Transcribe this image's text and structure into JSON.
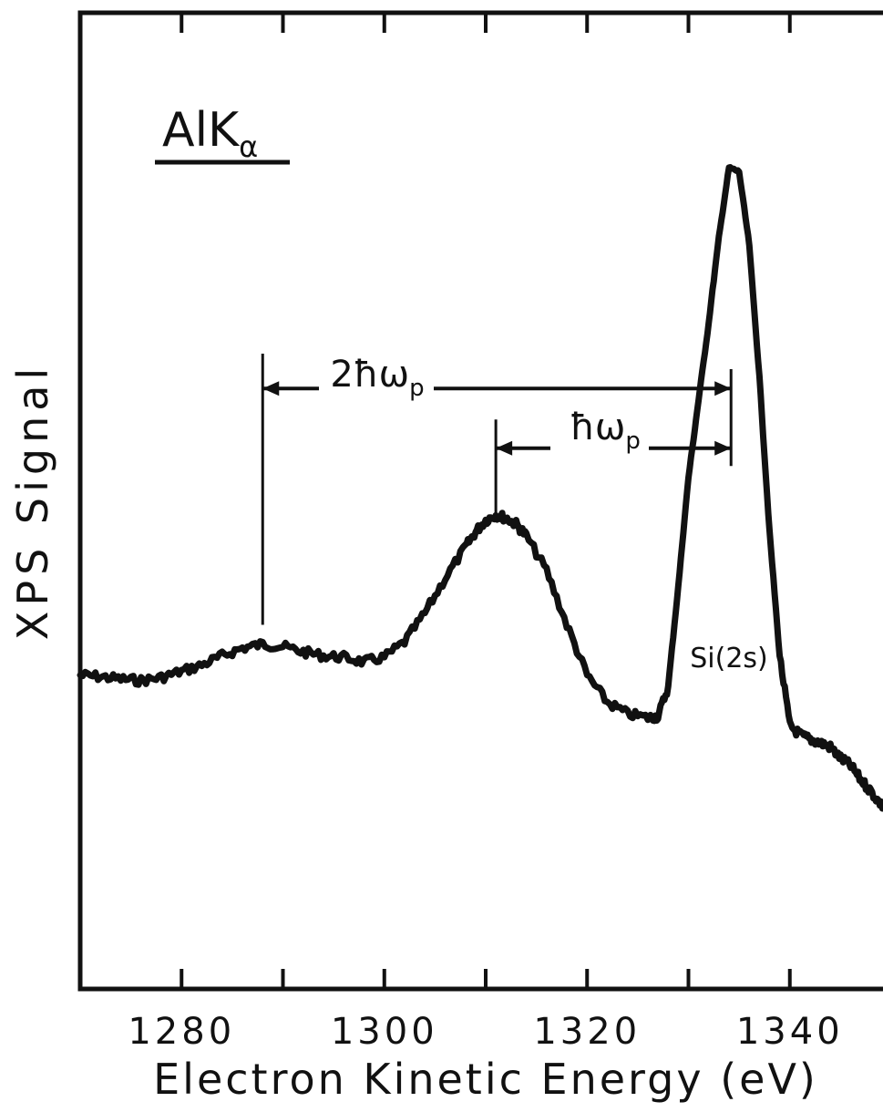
{
  "chart_data": {
    "type": "line",
    "title": "",
    "source_label": {
      "main": "AlK",
      "sub": "α"
    },
    "xlabel": "Electron Kinetic Energy (eV)",
    "ylabel": "XPS Signal",
    "xlim": [
      1270,
      1350
    ],
    "ylim": [
      0,
      1
    ],
    "x_ticks_major": [
      1280,
      1300,
      1320,
      1340
    ],
    "x_ticks_minor": [
      1290,
      1310,
      1330
    ],
    "x_tick_labels": [
      "1280",
      "1300",
      "1320",
      "1340"
    ],
    "y_ticks_count": 0,
    "grid": false,
    "series": [
      {
        "x": [
          1270,
          1272,
          1274,
          1276,
          1278,
          1280,
          1282,
          1284,
          1286,
          1288,
          1290,
          1292,
          1294,
          1296,
          1298,
          1300,
          1302,
          1304,
          1306,
          1308,
          1309,
          1310,
          1311,
          1312,
          1313,
          1314,
          1316,
          1318,
          1320,
          1322,
          1324,
          1326,
          1327,
          1328,
          1329,
          1330,
          1331,
          1332,
          1333,
          1334,
          1335,
          1336,
          1337,
          1338,
          1339,
          1340,
          1341,
          1342,
          1343,
          1344,
          1345,
          1346,
          1347,
          1348,
          1349,
          1350
        ],
        "values": [
          0.305,
          0.303,
          0.3,
          0.298,
          0.302,
          0.31,
          0.318,
          0.33,
          0.34,
          0.345,
          0.342,
          0.335,
          0.33,
          0.328,
          0.322,
          0.328,
          0.348,
          0.385,
          0.43,
          0.47,
          0.49,
          0.505,
          0.512,
          0.508,
          0.5,
          0.485,
          0.44,
          0.37,
          0.305,
          0.27,
          0.255,
          0.25,
          0.252,
          0.29,
          0.42,
          0.56,
          0.66,
          0.76,
          0.87,
          0.96,
          0.955,
          0.86,
          0.69,
          0.49,
          0.33,
          0.24,
          0.228,
          0.222,
          0.218,
          0.212,
          0.198,
          0.188,
          0.17,
          0.155,
          0.138,
          0.125
        ]
      }
    ],
    "annotations": [
      {
        "id": "peak",
        "text": "Si(2s)",
        "x": 1335,
        "y": 0.335
      },
      {
        "id": "one-plasmon",
        "text": "ħω",
        "sub": "p",
        "from_x": 1311,
        "to_x": 1334.2,
        "y": 0.598
      },
      {
        "id": "two-plasmon",
        "text": "2ħω",
        "sub": "p",
        "from_x": 1288,
        "to_x": 1334.2,
        "y": 0.675
      }
    ],
    "marker_lines": [
      {
        "x": 1288,
        "y_top": 0.72,
        "y_bottom": 0.37
      },
      {
        "x": 1311,
        "y_top": 0.635,
        "y_bottom": 0.51
      },
      {
        "x": 1334.2,
        "y_top": 0.7,
        "y_bottom": 0.575
      }
    ]
  }
}
